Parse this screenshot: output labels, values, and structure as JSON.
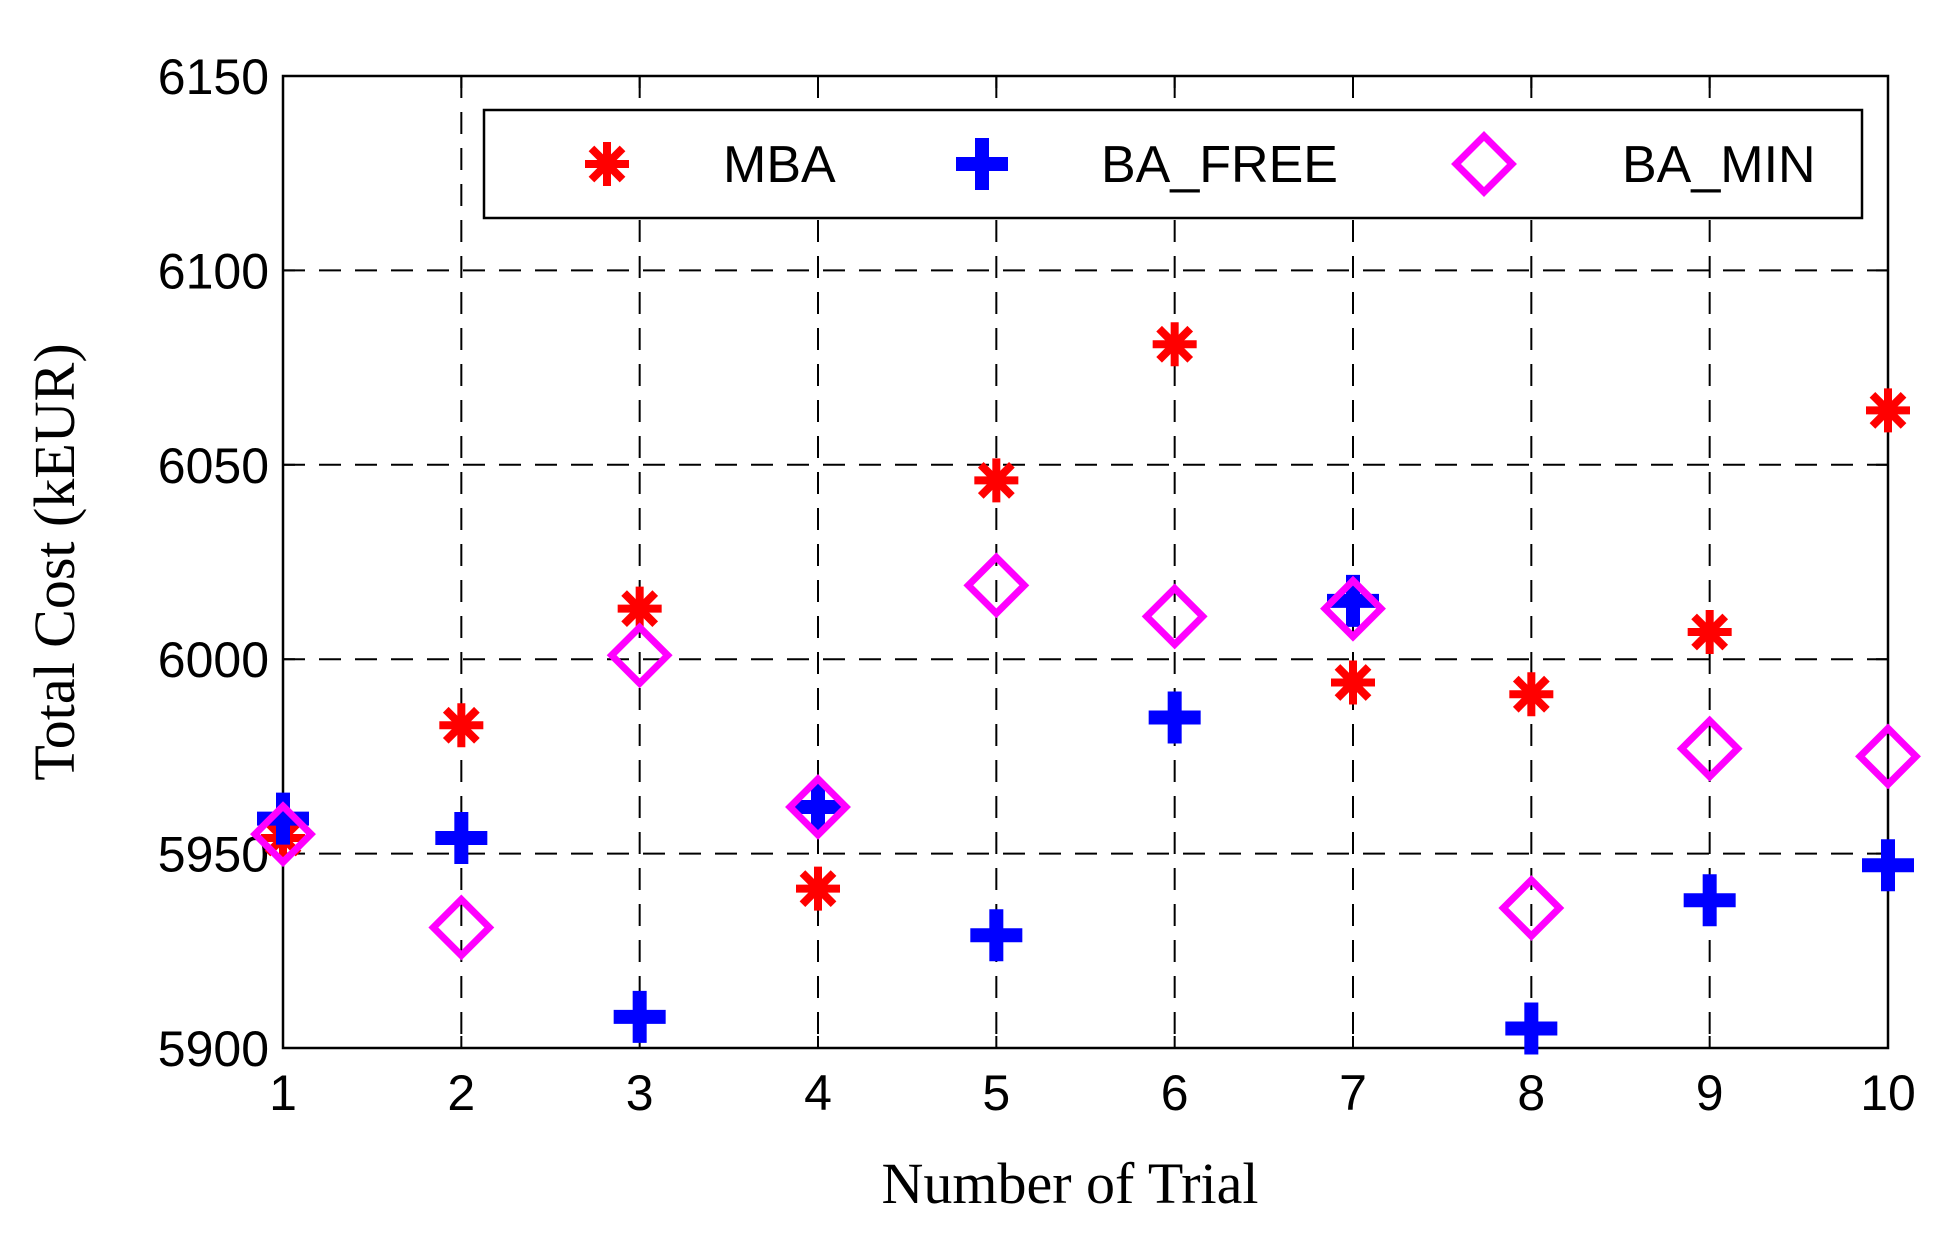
{
  "chart_data": {
    "type": "scatter",
    "title": "",
    "xlabel": "Number of Trial",
    "ylabel": "Total Cost (kEUR)",
    "xlim": [
      1,
      10
    ],
    "ylim": [
      5900,
      6150
    ],
    "xticks": [
      1,
      2,
      3,
      4,
      5,
      6,
      7,
      8,
      9,
      10
    ],
    "yticks": [
      5900,
      5950,
      6000,
      6050,
      6100,
      6150
    ],
    "grid": true,
    "legend_position": "top",
    "x": [
      1,
      2,
      3,
      4,
      5,
      6,
      7,
      8,
      9,
      10
    ],
    "series": [
      {
        "name": "MBA",
        "marker": "asterisk",
        "color": "#ff0000",
        "values": [
          5954,
          5983,
          6013,
          5941,
          6046,
          6081,
          5994,
          5991,
          6007,
          6064
        ]
      },
      {
        "name": "BA_FREE",
        "marker": "plus",
        "color": "#0000ff",
        "values": [
          5959,
          5954,
          5908,
          5962,
          5929,
          5985,
          6015,
          5905,
          5938,
          5947
        ]
      },
      {
        "name": "BA_MIN",
        "marker": "diamond",
        "color": "#ff00ff",
        "values": [
          5955,
          5931,
          6001,
          5962,
          6019,
          6011,
          6013,
          5936,
          5977,
          5975
        ]
      }
    ]
  }
}
